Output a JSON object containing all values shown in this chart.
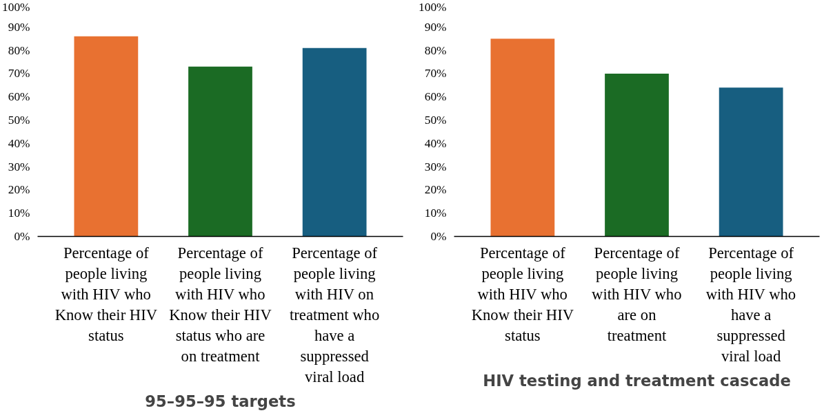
{
  "chart_data": [
    {
      "type": "bar",
      "title": "95–95–95 targets",
      "categories": [
        "Percentage of people living with HIV who Know their HIV status",
        "Percentage of people living with HIV who Know their HIV status who are on treatment",
        "Percentage of people living with HIV on treatment who have a suppressed viral load"
      ],
      "values": [
        86,
        73,
        81
      ],
      "colors": [
        "#e87131",
        "#1b6b24",
        "#175e80"
      ],
      "ylim": [
        0,
        100
      ],
      "yticks": [
        {
          "value": 0,
          "label": "0%"
        },
        {
          "value": 10,
          "label": "10%"
        },
        {
          "value": 20,
          "label": "20%"
        },
        {
          "value": 30,
          "label": "30%"
        },
        {
          "value": 40,
          "label": "40%"
        },
        {
          "value": 50,
          "label": "50%"
        },
        {
          "value": 60,
          "label": "60%"
        },
        {
          "value": 70,
          "label": "70%"
        },
        {
          "value": 80,
          "label": "80%"
        },
        {
          "value": 90,
          "label": "90%"
        },
        {
          "value": 100,
          "label": "100%"
        }
      ],
      "grid": false
    },
    {
      "type": "bar",
      "title": "HIV testing and treatment cascade",
      "categories": [
        "Percentage of people living with HIV who Know their HIV status",
        "Percentage of people living with HIV who are on treatment",
        "Percentage of people living with HIV who have a suppressed viral load"
      ],
      "values": [
        85,
        70,
        64
      ],
      "colors": [
        "#e87131",
        "#1b6b24",
        "#175e80"
      ],
      "ylim": [
        0,
        100
      ],
      "yticks": [
        {
          "value": 0,
          "label": "0%"
        },
        {
          "value": 10,
          "label": "10%"
        },
        {
          "value": 20,
          "label": "20%"
        },
        {
          "value": 30,
          "label": "30%"
        },
        {
          "value": 40,
          "label": "40%"
        },
        {
          "value": 50,
          "label": "50%"
        },
        {
          "value": 60,
          "label": "60%"
        },
        {
          "value": 70,
          "label": "70%"
        },
        {
          "value": 80,
          "label": "80%"
        },
        {
          "value": 90,
          "label": "90%"
        },
        {
          "value": 100,
          "label": "100%"
        }
      ],
      "grid": false
    }
  ]
}
